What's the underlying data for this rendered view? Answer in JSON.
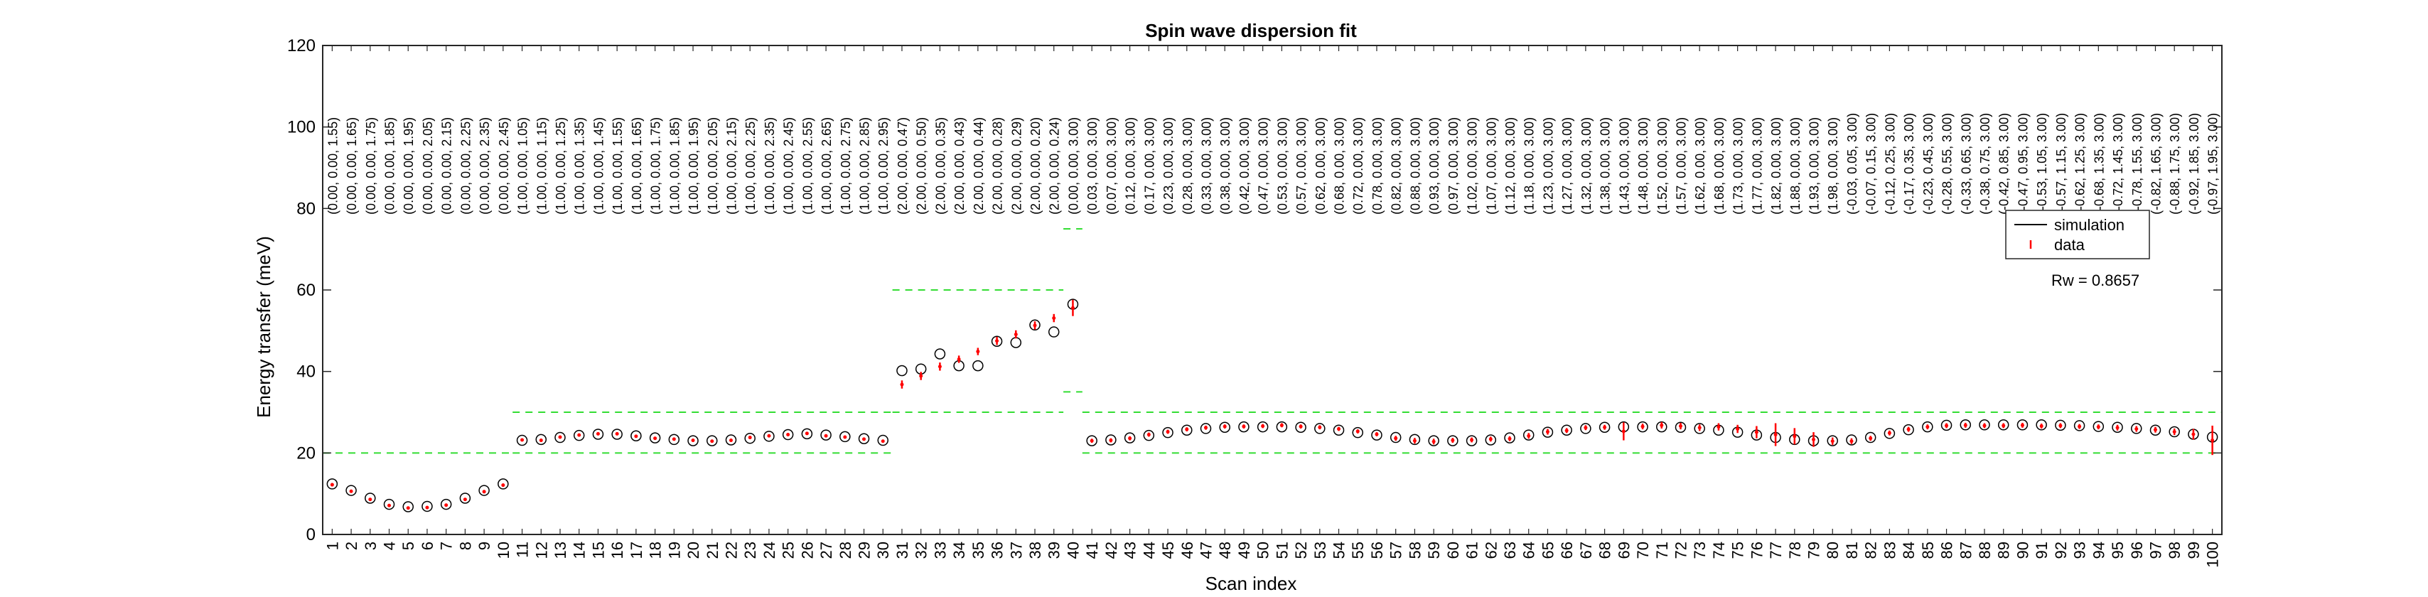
{
  "chart_data": {
    "type": "scatter",
    "title": "Spin wave dispersion fit",
    "xlabel": "Scan index",
    "ylabel": "Energy transfer (meV)",
    "xlim": [
      0.5,
      100.5
    ],
    "ylim": [
      0,
      120
    ],
    "yticks": [
      0,
      20,
      40,
      60,
      80,
      100,
      120
    ],
    "legend": {
      "position": "right",
      "entries": [
        "simulation",
        "data"
      ]
    },
    "annotation": "Rw = 0.8657",
    "colors": {
      "simulation": "#000000",
      "data": "#ff0000",
      "window": "#33dd33"
    },
    "scan_labels": [
      "(0.00, 0.00, 1.55)",
      "(0.00, 0.00, 1.65)",
      "(0.00, 0.00, 1.75)",
      "(0.00, 0.00, 1.85)",
      "(0.00, 0.00, 1.95)",
      "(0.00, 0.00, 2.05)",
      "(0.00, 0.00, 2.15)",
      "(0.00, 0.00, 2.25)",
      "(0.00, 0.00, 2.35)",
      "(0.00, 0.00, 2.45)",
      "(1.00, 0.00, 1.05)",
      "(1.00, 0.00, 1.15)",
      "(1.00, 0.00, 1.25)",
      "(1.00, 0.00, 1.35)",
      "(1.00, 0.00, 1.45)",
      "(1.00, 0.00, 1.55)",
      "(1.00, 0.00, 1.65)",
      "(1.00, 0.00, 1.75)",
      "(1.00, 0.00, 1.85)",
      "(1.00, 0.00, 1.95)",
      "(1.00, 0.00, 2.05)",
      "(1.00, 0.00, 2.15)",
      "(1.00, 0.00, 2.25)",
      "(1.00, 0.00, 2.35)",
      "(1.00, 0.00, 2.45)",
      "(1.00, 0.00, 2.55)",
      "(1.00, 0.00, 2.65)",
      "(1.00, 0.00, 2.75)",
      "(1.00, 0.00, 2.85)",
      "(1.00, 0.00, 2.95)",
      "(2.00, 0.00, 0.47)",
      "(2.00, 0.00, 0.50)",
      "(2.00, 0.00, 0.35)",
      "(2.00, 0.00, 0.43)",
      "(2.00, 0.00, 0.44)",
      "(2.00, 0.00, 0.28)",
      "(2.00, 0.00, 0.29)",
      "(2.00, 0.00, 0.20)",
      "(2.00, 0.00, 0.24)",
      "(0.00, 0.00, 3.00)",
      "(0.03, 0.00, 3.00)",
      "(0.07, 0.00, 3.00)",
      "(0.12, 0.00, 3.00)",
      "(0.17, 0.00, 3.00)",
      "(0.23, 0.00, 3.00)",
      "(0.28, 0.00, 3.00)",
      "(0.33, 0.00, 3.00)",
      "(0.38, 0.00, 3.00)",
      "(0.42, 0.00, 3.00)",
      "(0.47, 0.00, 3.00)",
      "(0.53, 0.00, 3.00)",
      "(0.57, 0.00, 3.00)",
      "(0.62, 0.00, 3.00)",
      "(0.68, 0.00, 3.00)",
      "(0.72, 0.00, 3.00)",
      "(0.78, 0.00, 3.00)",
      "(0.82, 0.00, 3.00)",
      "(0.88, 0.00, 3.00)",
      "(0.93, 0.00, 3.00)",
      "(0.97, 0.00, 3.00)",
      "(1.02, 0.00, 3.00)",
      "(1.07, 0.00, 3.00)",
      "(1.12, 0.00, 3.00)",
      "(1.18, 0.00, 3.00)",
      "(1.23, 0.00, 3.00)",
      "(1.27, 0.00, 3.00)",
      "(1.32, 0.00, 3.00)",
      "(1.38, 0.00, 3.00)",
      "(1.43, 0.00, 3.00)",
      "(1.48, 0.00, 3.00)",
      "(1.52, 0.00, 3.00)",
      "(1.57, 0.00, 3.00)",
      "(1.62, 0.00, 3.00)",
      "(1.68, 0.00, 3.00)",
      "(1.73, 0.00, 3.00)",
      "(1.77, 0.00, 3.00)",
      "(1.82, 0.00, 3.00)",
      "(1.88, 0.00, 3.00)",
      "(1.93, 0.00, 3.00)",
      "(1.98, 0.00, 3.00)",
      "(-0.03, 0.05, 3.00)",
      "(-0.07, 0.15, 3.00)",
      "(-0.12, 0.25, 3.00)",
      "(-0.17, 0.35, 3.00)",
      "(-0.23, 0.45, 3.00)",
      "(-0.28, 0.55, 3.00)",
      "(-0.33, 0.65, 3.00)",
      "(-0.38, 0.75, 3.00)",
      "(-0.42, 0.85, 3.00)",
      "(-0.47, 0.95, 3.00)",
      "(-0.53, 1.05, 3.00)",
      "(-0.57, 1.15, 3.00)",
      "(-0.62, 1.25, 3.00)",
      "(-0.68, 1.35, 3.00)",
      "(-0.72, 1.45, 3.00)",
      "(-0.78, 1.55, 3.00)",
      "(-0.82, 1.65, 3.00)",
      "(-0.88, 1.75, 3.00)",
      "(-0.92, 1.85, 3.00)",
      "(-0.97, 1.95, 3.00)"
    ],
    "simulation": [
      12.4,
      10.8,
      8.9,
      7.4,
      6.8,
      6.9,
      7.4,
      8.9,
      10.8,
      12.4,
      23.1,
      23.3,
      23.8,
      24.3,
      24.6,
      24.6,
      24.2,
      23.7,
      23.3,
      23.0,
      23.0,
      23.2,
      23.6,
      24.1,
      24.5,
      24.7,
      24.4,
      24.0,
      23.5,
      23.1,
      40.2,
      40.6,
      44.3,
      41.4,
      41.4,
      47.4,
      47.1,
      51.4,
      49.7,
      56.5,
      23.0,
      23.2,
      23.7,
      24.3,
      25.0,
      25.6,
      26.0,
      26.3,
      26.4,
      26.4,
      26.4,
      26.3,
      26.0,
      25.6,
      25.0,
      24.4,
      23.8,
      23.3,
      23.0,
      23.0,
      23.0,
      23.2,
      23.7,
      24.4,
      25.1,
      25.6,
      26.0,
      26.3,
      26.4,
      26.4,
      26.4,
      26.3,
      26.0,
      25.6,
      25.1,
      24.4,
      23.8,
      23.3,
      23.0,
      23.0,
      23.2,
      23.8,
      24.8,
      25.7,
      26.4,
      26.8,
      26.9,
      26.9,
      26.9,
      26.9,
      26.9,
      26.8,
      26.7,
      26.5,
      26.3,
      26.0,
      25.6,
      25.2,
      24.6,
      23.9
    ],
    "data": [
      12.2,
      10.6,
      8.6,
      7.1,
      6.5,
      6.6,
      7.2,
      8.6,
      10.5,
      12.1,
      23.2,
      23.1,
      23.9,
      24.4,
      24.7,
      24.7,
      24.1,
      23.6,
      23.4,
      23.1,
      22.9,
      23.1,
      23.8,
      24.2,
      24.5,
      24.8,
      24.2,
      23.9,
      23.4,
      22.9,
      36.8,
      38.9,
      41.2,
      43.0,
      44.9,
      47.5,
      49.1,
      51.3,
      53.1,
      55.6,
      23.0,
      23.1,
      23.6,
      24.5,
      25.2,
      25.8,
      26.2,
      26.5,
      26.5,
      26.6,
      26.8,
      26.5,
      26.3,
      25.9,
      25.3,
      24.6,
      23.6,
      23.0,
      22.8,
      23.1,
      23.2,
      23.4,
      23.5,
      24.2,
      25.2,
      25.5,
      26.2,
      26.3,
      25.3,
      26.5,
      26.8,
      26.6,
      26.2,
      26.4,
      25.9,
      25.1,
      24.5,
      24.1,
      23.3,
      22.9,
      22.9,
      23.6,
      24.9,
      25.8,
      26.4,
      26.7,
      26.8,
      26.7,
      26.7,
      26.8,
      26.6,
      26.7,
      26.5,
      26.4,
      26.2,
      25.9,
      25.7,
      25.2,
      24.6,
      23.1
    ],
    "error": [
      0.4,
      0.4,
      0.3,
      0.3,
      0.3,
      0.3,
      0.3,
      0.3,
      0.4,
      0.4,
      0.3,
      0.3,
      0.3,
      0.3,
      0.3,
      0.3,
      0.3,
      0.3,
      0.3,
      0.3,
      0.3,
      0.3,
      0.3,
      0.3,
      0.3,
      0.3,
      0.3,
      0.3,
      0.3,
      0.3,
      1.0,
      1.0,
      1.0,
      0.9,
      0.9,
      1.0,
      1.0,
      1.0,
      1.0,
      2.0,
      0.5,
      0.5,
      0.5,
      0.5,
      0.5,
      0.5,
      0.5,
      0.5,
      0.5,
      0.5,
      0.5,
      0.5,
      0.5,
      0.5,
      0.5,
      0.5,
      0.6,
      0.7,
      0.7,
      0.6,
      0.6,
      0.6,
      0.6,
      0.7,
      0.7,
      0.6,
      0.6,
      0.6,
      2.2,
      0.7,
      0.8,
      0.8,
      0.8,
      0.9,
      1.0,
      1.5,
      2.8,
      2.0,
      1.8,
      0.9,
      0.7,
      0.6,
      0.6,
      0.6,
      0.6,
      0.6,
      0.6,
      0.6,
      0.6,
      0.6,
      0.6,
      0.6,
      0.6,
      0.6,
      0.7,
      0.7,
      0.7,
      0.8,
      1.3,
      3.6
    ],
    "windows": [
      {
        "from": 0,
        "to": 10,
        "lower": 0,
        "upper": 20
      },
      {
        "from": 10,
        "to": 30,
        "lower": 20,
        "upper": 30
      },
      {
        "from": 30,
        "to": 39,
        "lower": 30,
        "upper": 60
      },
      {
        "from": 39,
        "to": 40,
        "lower": 35,
        "upper": 75
      },
      {
        "from": 40,
        "to": 100,
        "lower": 20,
        "upper": 30
      }
    ]
  }
}
